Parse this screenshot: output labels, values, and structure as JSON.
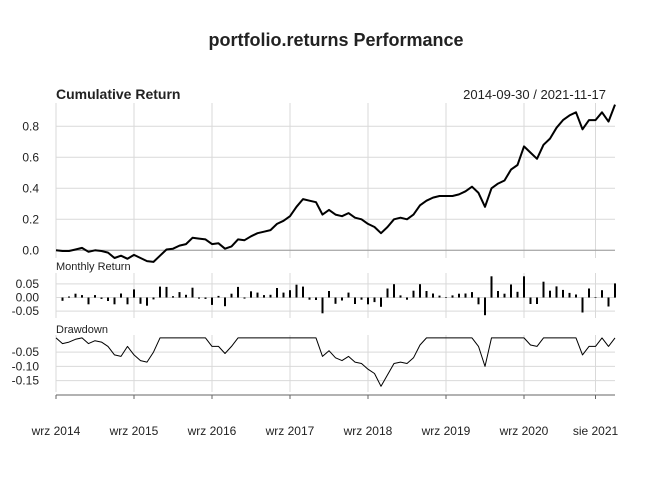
{
  "chart_data": {
    "type": "line",
    "title": "portfolio.returns Performance",
    "date_range": "2014-09-30 / 2021-11-17",
    "x_tick_labels": [
      "wrz 2014",
      "wrz 2015",
      "wrz 2016",
      "wrz 2017",
      "wrz 2018",
      "wrz 2019",
      "wrz 2020",
      "sie 2021"
    ],
    "x_tick_months": [
      0,
      12,
      24,
      36,
      48,
      60,
      72,
      83
    ],
    "x_range_months": [
      0,
      86
    ],
    "grid": true,
    "panels": [
      {
        "name": "Cumulative Return",
        "label": "Cumulative Return",
        "type": "line",
        "ylim": [
          -0.05,
          0.95
        ],
        "yticks": [
          0.0,
          0.2,
          0.4,
          0.6,
          0.8
        ],
        "ytick_labels": [
          "0.0",
          "0.2",
          "0.4",
          "0.6",
          "0.8"
        ],
        "baseline": 0.0,
        "x_months": [
          0,
          1,
          2,
          3,
          4,
          5,
          6,
          7,
          8,
          9,
          10,
          11,
          12,
          13,
          14,
          15,
          16,
          17,
          18,
          19,
          20,
          21,
          22,
          23,
          24,
          25,
          26,
          27,
          28,
          29,
          30,
          31,
          32,
          33,
          34,
          35,
          36,
          37,
          38,
          39,
          40,
          41,
          42,
          43,
          44,
          45,
          46,
          47,
          48,
          49,
          50,
          51,
          52,
          53,
          54,
          55,
          56,
          57,
          58,
          59,
          60,
          61,
          62,
          63,
          64,
          65,
          66,
          67,
          68,
          69,
          70,
          71,
          72,
          73,
          74,
          75,
          76,
          77,
          78,
          79,
          80,
          81,
          82,
          83,
          84,
          85,
          86
        ],
        "values": [
          0.0,
          -0.005,
          -0.005,
          0.005,
          0.015,
          -0.01,
          0.0,
          -0.005,
          -0.015,
          -0.05,
          -0.035,
          -0.055,
          -0.03,
          -0.05,
          -0.07,
          -0.075,
          -0.035,
          0.005,
          0.01,
          0.03,
          0.04,
          0.08,
          0.075,
          0.07,
          0.04,
          0.045,
          0.01,
          0.025,
          0.07,
          0.065,
          0.09,
          0.11,
          0.12,
          0.13,
          0.17,
          0.19,
          0.22,
          0.28,
          0.33,
          0.32,
          0.31,
          0.23,
          0.26,
          0.23,
          0.22,
          0.24,
          0.21,
          0.2,
          0.17,
          0.15,
          0.11,
          0.15,
          0.2,
          0.21,
          0.2,
          0.23,
          0.29,
          0.32,
          0.34,
          0.35,
          0.35,
          0.35,
          0.36,
          0.38,
          0.41,
          0.37,
          0.28,
          0.4,
          0.43,
          0.45,
          0.52,
          0.55,
          0.67,
          0.63,
          0.59,
          0.68,
          0.72,
          0.79,
          0.84,
          0.87,
          0.89,
          0.78,
          0.84,
          0.84,
          0.89,
          0.83,
          0.94
        ]
      },
      {
        "name": "Monthly Return",
        "label": "Monthly Return",
        "type": "bar",
        "ylim": [
          -0.075,
          0.09
        ],
        "yticks": [
          0.05,
          0.0,
          -0.05
        ],
        "ytick_labels": [
          "0.05",
          "0.00",
          "-0.05"
        ],
        "x_months": [
          1,
          2,
          3,
          4,
          5,
          6,
          7,
          8,
          9,
          10,
          11,
          12,
          13,
          14,
          15,
          16,
          17,
          18,
          19,
          20,
          21,
          22,
          23,
          24,
          25,
          26,
          27,
          28,
          29,
          30,
          31,
          32,
          33,
          34,
          35,
          36,
          37,
          38,
          39,
          40,
          41,
          42,
          43,
          44,
          45,
          46,
          47,
          48,
          49,
          50,
          51,
          52,
          53,
          54,
          55,
          56,
          57,
          58,
          59,
          60,
          61,
          62,
          63,
          64,
          65,
          66,
          67,
          68,
          69,
          70,
          71,
          72,
          73,
          74,
          75,
          76,
          77,
          78,
          79,
          80,
          81,
          82,
          83,
          84,
          85,
          86
        ],
        "values": [
          -0.012,
          0.004,
          0.014,
          0.009,
          -0.025,
          0.009,
          -0.005,
          -0.013,
          -0.025,
          0.015,
          -0.025,
          0.03,
          -0.023,
          -0.03,
          -0.007,
          0.04,
          0.039,
          0.005,
          0.02,
          0.01,
          0.036,
          -0.004,
          -0.005,
          -0.027,
          0.006,
          -0.032,
          0.014,
          0.039,
          -0.004,
          0.023,
          0.018,
          0.009,
          0.01,
          0.035,
          0.018,
          0.027,
          0.047,
          0.04,
          -0.008,
          -0.009,
          -0.058,
          0.024,
          -0.023,
          -0.011,
          0.018,
          -0.024,
          -0.008,
          -0.025,
          -0.017,
          -0.034,
          0.033,
          0.049,
          0.008,
          -0.008,
          0.025,
          0.049,
          0.024,
          0.015,
          0.007,
          0.001,
          0.008,
          0.014,
          0.015,
          0.02,
          -0.025,
          -0.065,
          0.078,
          0.024,
          0.014,
          0.048,
          0.021,
          0.078,
          -0.024,
          -0.024,
          0.058,
          0.025,
          0.041,
          0.028,
          0.017,
          0.011,
          -0.055,
          0.033,
          0.001,
          0.027,
          -0.033,
          0.052
        ]
      },
      {
        "name": "Drawdown",
        "label": "Drawdown",
        "type": "line",
        "ylim": [
          -0.19,
          0.01
        ],
        "yticks": [
          -0.05,
          -0.1,
          -0.15
        ],
        "ytick_labels": [
          "-0.05",
          "-0.10",
          "-0.15"
        ],
        "x_months": [
          0,
          1,
          2,
          3,
          4,
          5,
          6,
          7,
          8,
          9,
          10,
          11,
          12,
          13,
          14,
          15,
          16,
          17,
          18,
          19,
          20,
          21,
          22,
          23,
          24,
          25,
          26,
          27,
          28,
          29,
          30,
          31,
          32,
          33,
          34,
          35,
          36,
          37,
          38,
          39,
          40,
          41,
          42,
          43,
          44,
          45,
          46,
          47,
          48,
          49,
          50,
          51,
          52,
          53,
          54,
          55,
          56,
          57,
          58,
          59,
          60,
          61,
          62,
          63,
          64,
          65,
          66,
          67,
          68,
          69,
          70,
          71,
          72,
          73,
          74,
          75,
          76,
          77,
          78,
          79,
          80,
          81,
          82,
          83,
          84,
          85,
          86
        ],
        "values": [
          0.0,
          -0.02,
          -0.015,
          -0.005,
          0.0,
          -0.02,
          -0.01,
          -0.015,
          -0.03,
          -0.06,
          -0.065,
          -0.03,
          -0.06,
          -0.08,
          -0.085,
          -0.05,
          0.0,
          0.0,
          0.0,
          0.0,
          0.0,
          0.0,
          0.0,
          0.0,
          -0.03,
          -0.03,
          -0.055,
          -0.03,
          0.0,
          0.0,
          0.0,
          0.0,
          0.0,
          0.0,
          0.0,
          0.0,
          0.0,
          0.0,
          0.0,
          0.0,
          0.0,
          -0.065,
          -0.045,
          -0.07,
          -0.08,
          -0.065,
          -0.085,
          -0.09,
          -0.11,
          -0.125,
          -0.17,
          -0.13,
          -0.09,
          -0.085,
          -0.09,
          -0.07,
          -0.025,
          0.0,
          0.0,
          0.0,
          0.0,
          0.0,
          0.0,
          0.0,
          0.0,
          -0.03,
          -0.1,
          0.0,
          0.0,
          0.0,
          0.0,
          0.0,
          0.0,
          -0.025,
          -0.03,
          0.0,
          0.0,
          0.0,
          0.0,
          0.0,
          0.0,
          -0.06,
          -0.03,
          -0.03,
          0.0,
          -0.03,
          0.0
        ]
      }
    ]
  }
}
